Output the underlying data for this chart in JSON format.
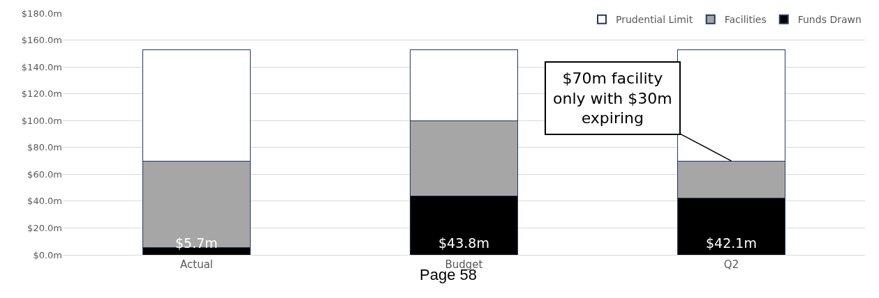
{
  "chart_data": {
    "type": "bar",
    "stacked": true,
    "categories": [
      "Actual",
      "Budget",
      "Q2"
    ],
    "series": [
      {
        "name": "Funds Drawn",
        "color": "#000000",
        "values": [
          5.7,
          43.8,
          42.1
        ],
        "value_labels": [
          "$5.7m",
          "$43.8m",
          "$42.1m"
        ]
      },
      {
        "name": "Facilities",
        "color": "#a6a6a6",
        "values": [
          64.3,
          56.2,
          27.9
        ]
      },
      {
        "name": "Prudential Limit",
        "color": "#ffffff",
        "values": [
          83,
          53,
          83
        ]
      }
    ],
    "ylim": [
      0,
      180
    ],
    "yticks": [
      {
        "value": 0,
        "label": "$0.0m"
      },
      {
        "value": 20,
        "label": "$20.0m"
      },
      {
        "value": 40,
        "label": "$40.0m"
      },
      {
        "value": 60,
        "label": "$60.0m"
      },
      {
        "value": 80,
        "label": "$80.0m"
      },
      {
        "value": 100,
        "label": "$100.0m"
      },
      {
        "value": 120,
        "label": "$120.0m"
      },
      {
        "value": 140,
        "label": "$140.0m"
      },
      {
        "value": 160,
        "label": "$160.0m"
      },
      {
        "value": 180,
        "label": "$180.0m"
      }
    ],
    "grid": "y",
    "legend": "top right",
    "annotations": [
      {
        "text": "$70m facility only with $30m expiring",
        "x": "Q2",
        "y": 70
      },
      "Page 58"
    ]
  }
}
